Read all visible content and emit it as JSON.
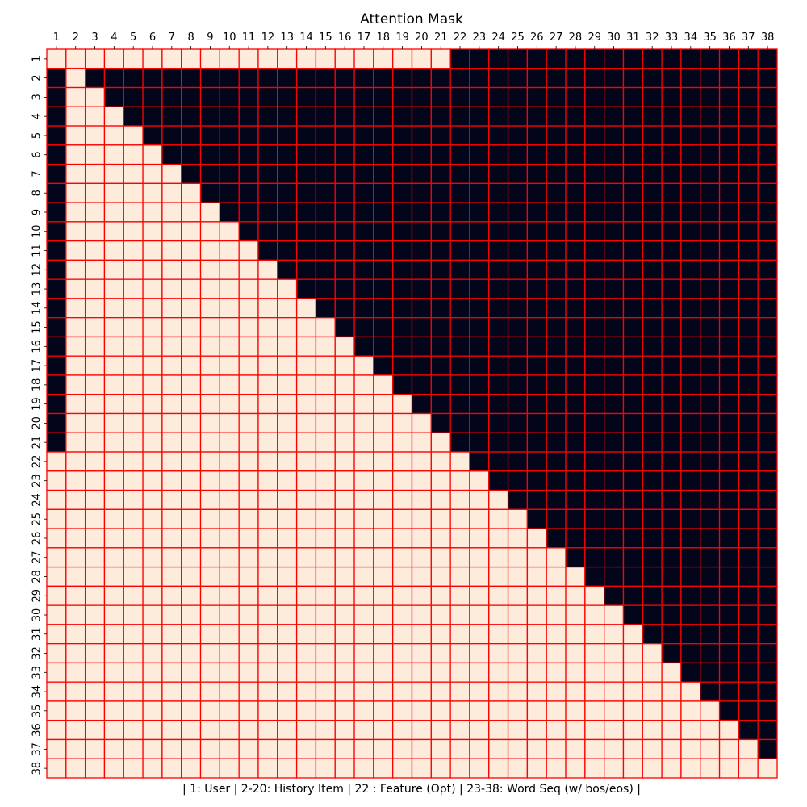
{
  "chart_data": {
    "type": "heatmap",
    "title": "Attention Mask",
    "xlabel": "| 1: User | 2-20: History Item | 22 : Feature (Opt) | 23-38: Word Seq (w/ bos/eos) |",
    "ylabel": "",
    "size": 38,
    "x_ticks": [
      "1",
      "2",
      "3",
      "4",
      "5",
      "6",
      "7",
      "8",
      "9",
      "10",
      "11",
      "12",
      "13",
      "14",
      "15",
      "16",
      "17",
      "18",
      "19",
      "20",
      "21",
      "22",
      "23",
      "24",
      "25",
      "26",
      "27",
      "28",
      "29",
      "30",
      "31",
      "32",
      "33",
      "34",
      "35",
      "36",
      "37",
      "38"
    ],
    "y_ticks": [
      "1",
      "2",
      "3",
      "4",
      "5",
      "6",
      "7",
      "8",
      "9",
      "10",
      "11",
      "12",
      "13",
      "14",
      "15",
      "16",
      "17",
      "18",
      "19",
      "20",
      "21",
      "22",
      "23",
      "24",
      "25",
      "26",
      "27",
      "28",
      "29",
      "30",
      "31",
      "32",
      "33",
      "34",
      "35",
      "36",
      "37",
      "38"
    ],
    "x_axis_position": "top",
    "mask_rule": "row 1 attends to columns 1-21; rows 2-21 attend to column 2 through the diagonal (column 1 masked); rows 22-38 attend to columns 1 through the diagonal",
    "masked_rows": {
      "1": [
        22,
        23,
        24,
        25,
        26,
        27,
        28,
        29,
        30,
        31,
        32,
        33,
        34,
        35,
        36,
        37,
        38
      ],
      "2-21": "column 1 and all columns after the row index",
      "22-38": "all columns after the row index"
    },
    "colors": {
      "attended": "#fdebdc",
      "masked": "#03051a",
      "cell_border": "#ff0000"
    },
    "grid": true,
    "legend": "none"
  }
}
